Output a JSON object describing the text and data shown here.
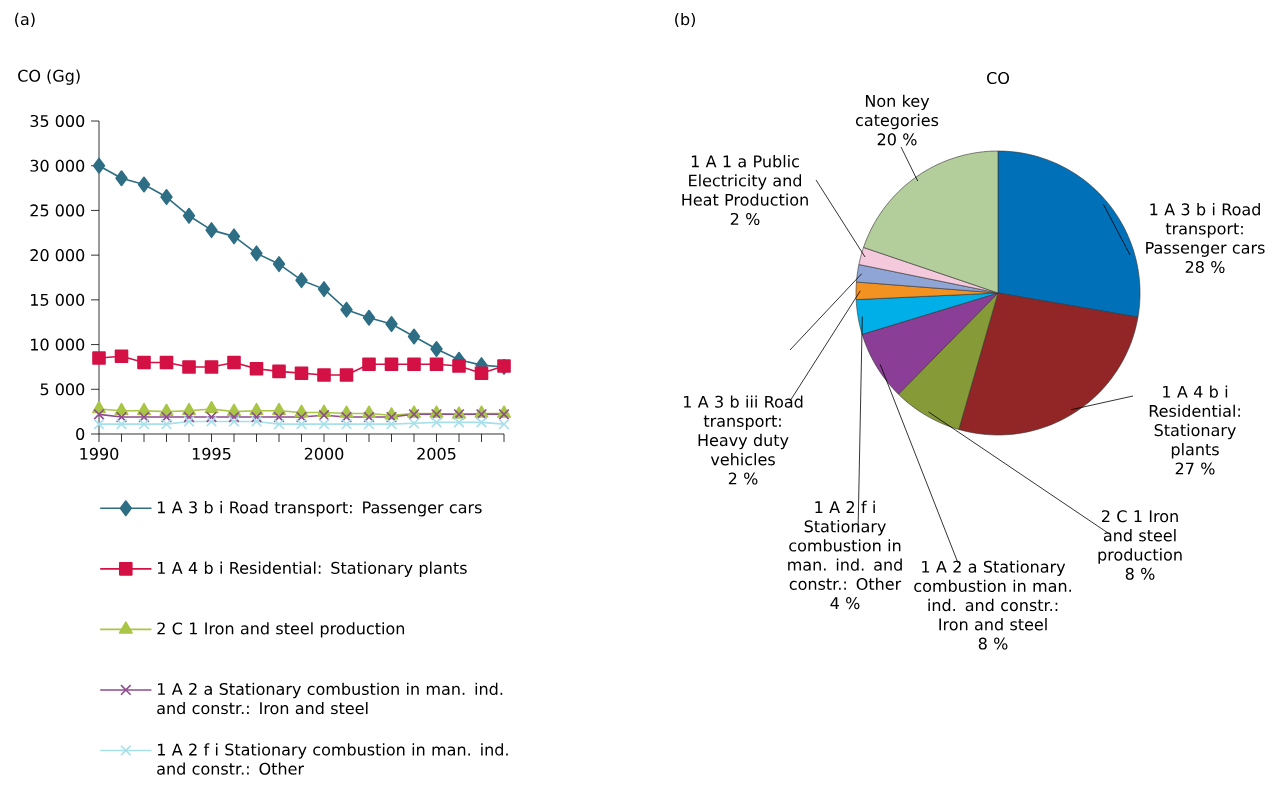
{
  "chart_data": [
    {
      "type": "line",
      "ylabel": "CO (Gg)",
      "annotations": [
        "(a)"
      ],
      "x": [
        1990,
        1991,
        1992,
        1993,
        1994,
        1995,
        1996,
        1997,
        1998,
        1999,
        2000,
        2001,
        2002,
        2003,
        2004,
        2005,
        2006,
        2007,
        2008
      ],
      "xlim": [
        1990,
        2008
      ],
      "xticks": [
        1990,
        {
          "value": 1991,
          "label": null
        },
        {
          "value": 1992,
          "label": null
        },
        {
          "value": 1993,
          "label": null
        },
        {
          "value": 1994,
          "label": null
        },
        1995,
        {
          "value": 1996,
          "label": null
        },
        {
          "value": 1997,
          "label": null
        },
        {
          "value": 1998,
          "label": null
        },
        {
          "value": 1999,
          "label": null
        },
        2000,
        {
          "value": 2001,
          "label": null
        },
        {
          "value": 2002,
          "label": null
        },
        {
          "value": 2003,
          "label": null
        },
        {
          "value": 2004,
          "label": null
        },
        2005,
        {
          "value": 2006,
          "label": null
        },
        {
          "value": 2007,
          "label": null
        },
        {
          "value": 2008,
          "label": null
        }
      ],
      "ylim": [
        0,
        35000
      ],
      "yticks": [
        0,
        {
          "value": 5000,
          "label": "5 000"
        },
        {
          "value": 10000,
          "label": "10 000"
        },
        {
          "value": 15000,
          "label": "15 000"
        },
        {
          "value": 20000,
          "label": "20 000"
        },
        {
          "value": 25000,
          "label": "25 000"
        },
        {
          "value": 30000,
          "label": "30 000"
        },
        {
          "value": 35000,
          "label": "35 000"
        }
      ],
      "grid": false,
      "legend": "bottom",
      "series": [
        {
          "name": "1 A 3 b i Road transport: Passenger cars",
          "color": "#2e6e84",
          "marker": "diamond",
          "values": [
            30000,
            28600,
            27900,
            26500,
            24400,
            22800,
            22100,
            20200,
            19000,
            17200,
            16200,
            13900,
            13000,
            12300,
            10900,
            9500,
            8300,
            7700,
            7500
          ]
        },
        {
          "name": "1 A 4 b i Residential: Stationary plants",
          "color": "#d31145",
          "marker": "square",
          "values": [
            8500,
            8700,
            8000,
            8000,
            7500,
            7500,
            8000,
            7300,
            7000,
            6800,
            6600,
            6600,
            7800,
            7800,
            7800,
            7800,
            7600,
            6800,
            7600
          ]
        },
        {
          "name": "2 C 1 Iron and steel production",
          "color": "#a8c545",
          "marker": "triangle",
          "values": [
            2800,
            2600,
            2600,
            2500,
            2600,
            2800,
            2500,
            2600,
            2600,
            2400,
            2400,
            2300,
            2300,
            2100,
            2300,
            2300,
            2200,
            2300,
            2300
          ]
        },
        {
          "name": "1 A 2 a Stationary combustion in man. ind. and constr.: Iron and steel",
          "color": "#8e4b8e",
          "marker": "cross",
          "values": [
            2200,
            1900,
            1900,
            1900,
            1900,
            1900,
            1900,
            1900,
            1900,
            1900,
            2100,
            1900,
            1900,
            1900,
            2200,
            2200,
            2200,
            2200,
            2200
          ]
        },
        {
          "name": "1 A 2 f i Stationary combustion in man. ind. and constr.: Other",
          "color": "#a6e0ea",
          "marker": "cross",
          "values": [
            1100,
            1100,
            1100,
            1100,
            1400,
            1400,
            1400,
            1400,
            1100,
            1100,
            1100,
            1100,
            1100,
            1100,
            1200,
            1300,
            1300,
            1300,
            1100
          ]
        }
      ]
    },
    {
      "type": "pie",
      "title": "CO",
      "annotations": [
        "(b)"
      ],
      "categories": [
        "1 A 3 b i Road transport: Passenger cars",
        "1 A 4 b i Residential: Stationary plants",
        "2 C 1 Iron and steel production",
        "1 A 2 a Stationary combustion in man. ind. and constr.: Iron and steel",
        "1 A 2 f i Stationary combustion in man. ind. and constr.: Other",
        "1 A 3 b iii Road transport: Heavy duty vehicles",
        null,
        "1 A 1 a Public Electricity and Heat Production",
        "Non key categories"
      ],
      "values": [
        28,
        27,
        8,
        8,
        4,
        2,
        2,
        2,
        20
      ],
      "value_labels": [
        "28 %",
        "27 %",
        "8 %",
        "8 %",
        "4 %",
        "2 %",
        null,
        "2 %",
        "20 %"
      ],
      "colors": [
        "#0070b8",
        "#922626",
        "#879a38",
        "#8b3e96",
        "#00aee8",
        "#f39221",
        "#8fa5d6",
        "#f5c9dc",
        "#b3cd9b"
      ]
    }
  ]
}
